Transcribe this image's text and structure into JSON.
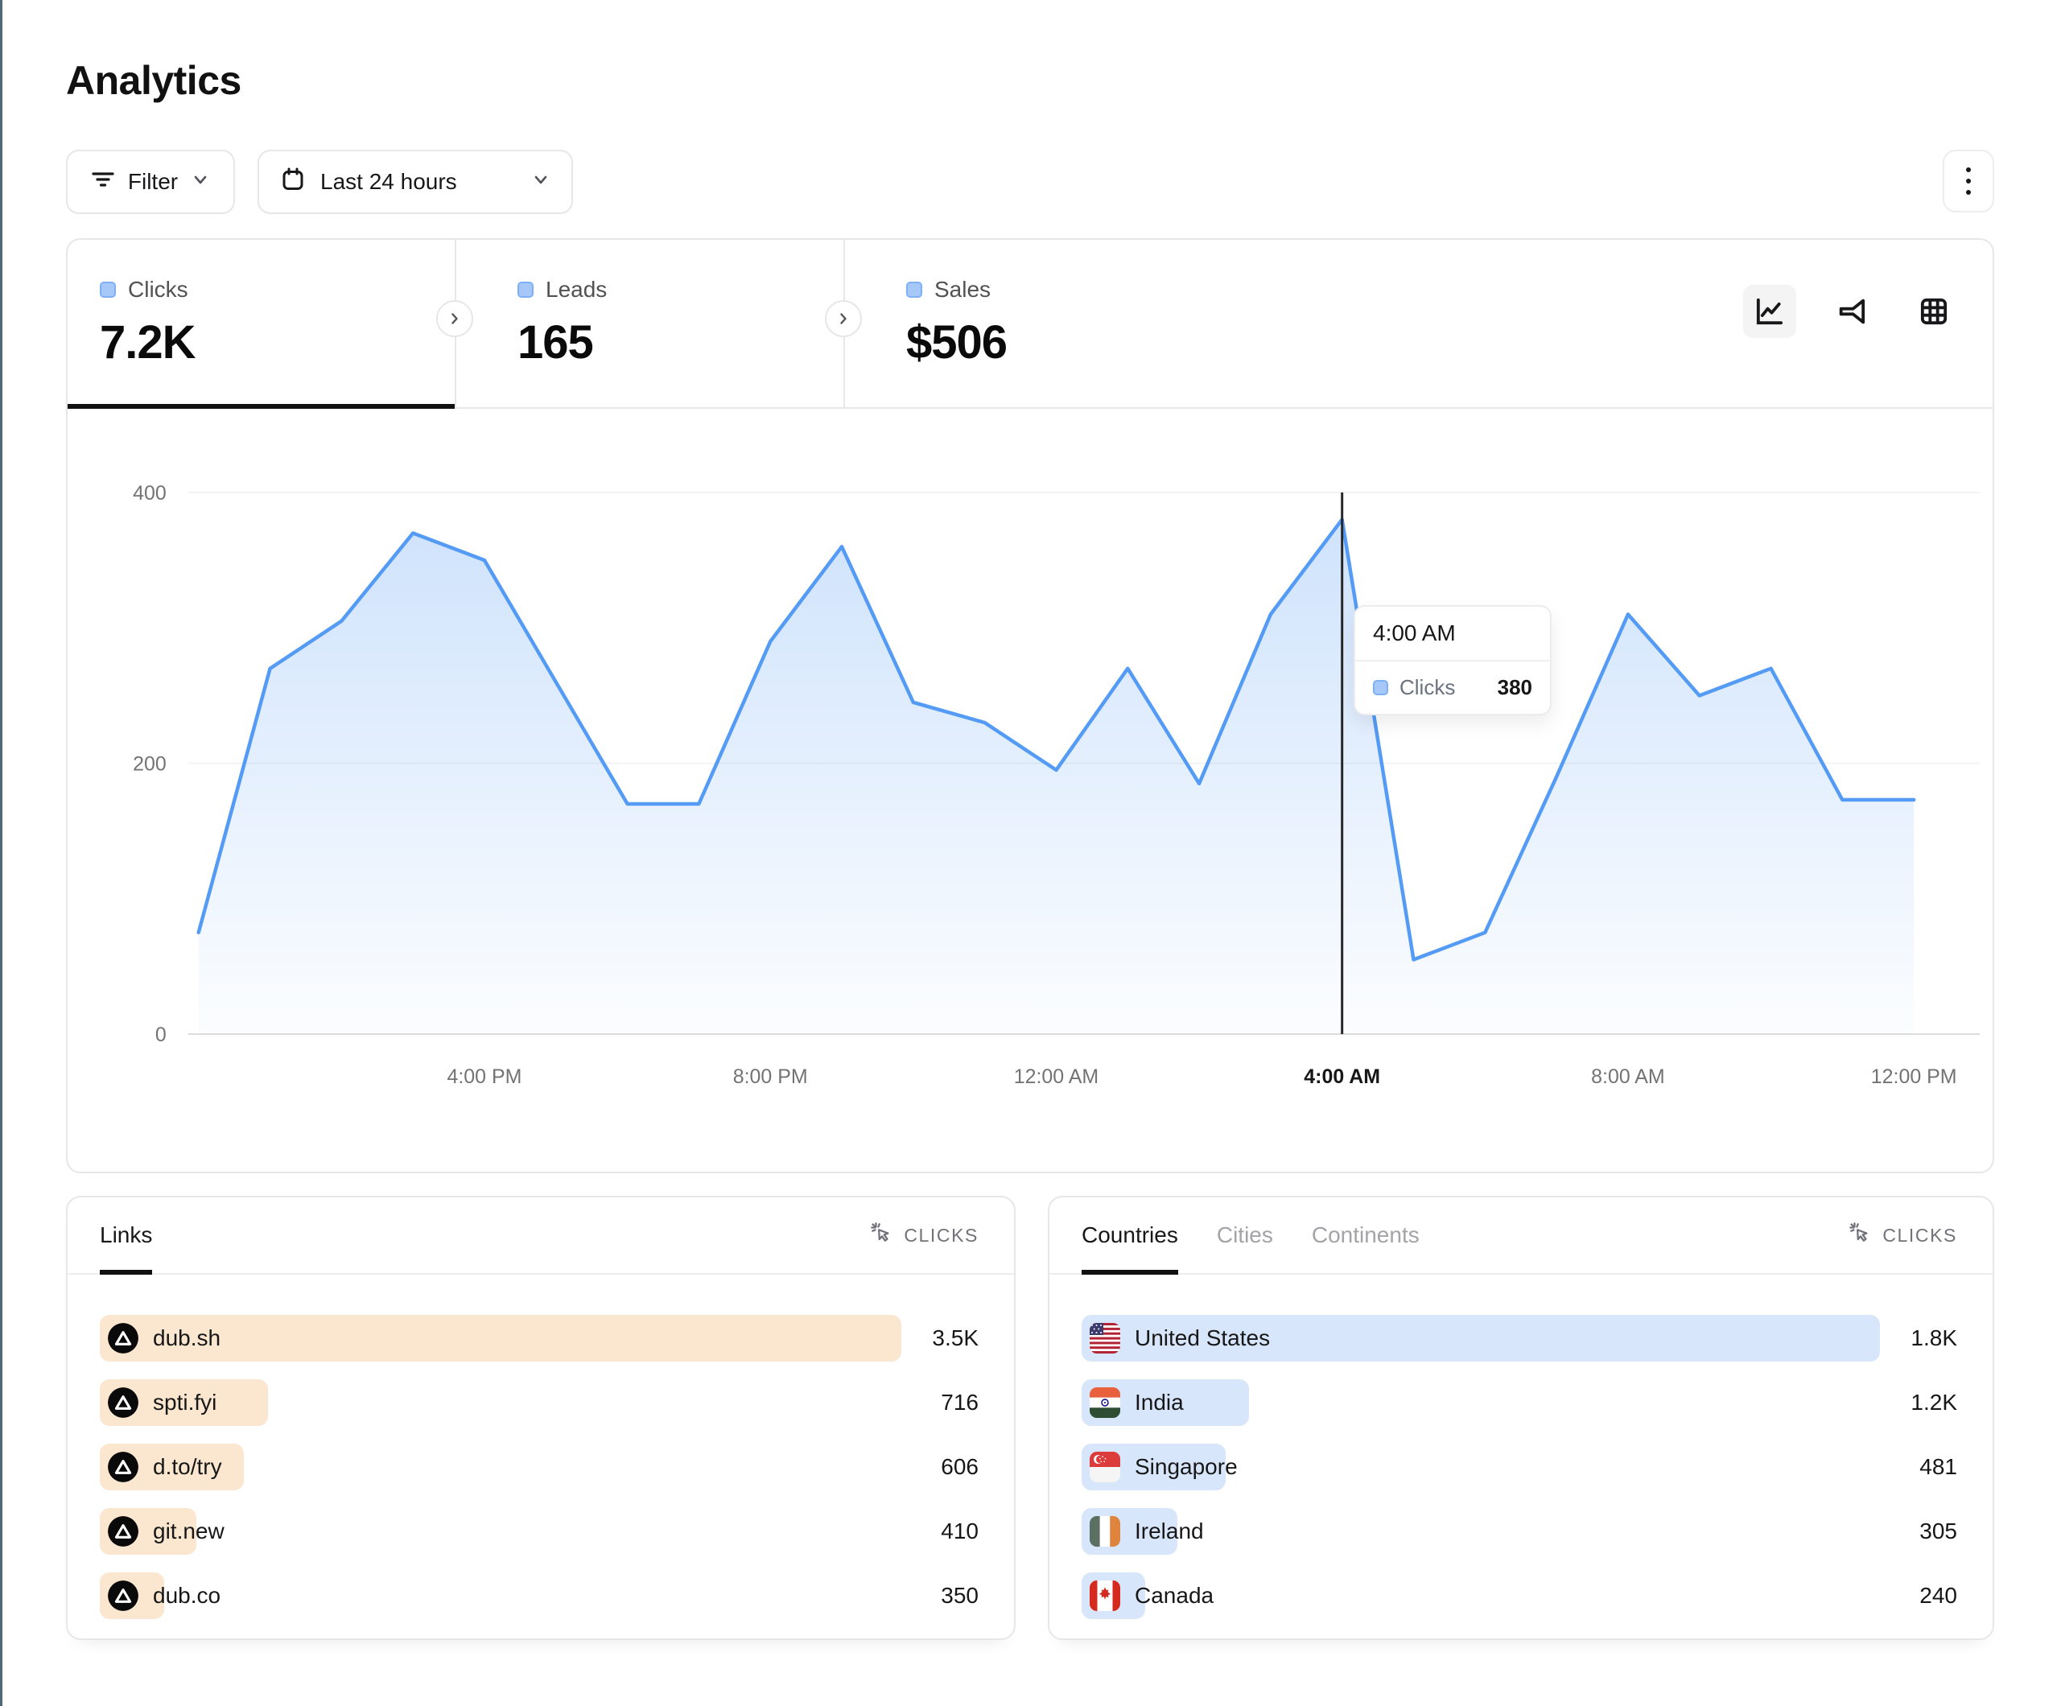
{
  "page": {
    "title": "Analytics"
  },
  "toolbar": {
    "filter_label": "Filter",
    "date_range_label": "Last 24 hours"
  },
  "stats": [
    {
      "label": "Clicks",
      "value": "7.2K"
    },
    {
      "label": "Leads",
      "value": "165"
    },
    {
      "label": "Sales",
      "value": "$506"
    }
  ],
  "chart_data": {
    "type": "area",
    "series": [
      {
        "name": "Clicks",
        "color": "#549bf5",
        "values": [
          75,
          270,
          305,
          370,
          350,
          260,
          170,
          170,
          290,
          360,
          245,
          230,
          195,
          270,
          185,
          310,
          380,
          55,
          75,
          190,
          310,
          250,
          270,
          173,
          173
        ]
      }
    ],
    "x": [
      "12 PM",
      "1 PM",
      "2 PM",
      "3 PM",
      "4 PM",
      "5 PM",
      "6 PM",
      "7 PM",
      "8 PM",
      "9 PM",
      "10 PM",
      "11 PM",
      "12 AM",
      "1 AM",
      "2 AM",
      "3 AM",
      "4 AM",
      "5 AM",
      "6 AM",
      "7 AM",
      "8 AM",
      "9 AM",
      "10 AM",
      "11 AM",
      "12 PM"
    ],
    "tick_indices": [
      4,
      8,
      12,
      16,
      20,
      24
    ],
    "tick_labels": [
      "4:00 PM",
      "8:00 PM",
      "12:00 AM",
      "4:00 AM",
      "8:00 AM",
      "12:00 PM"
    ],
    "yticks": [
      0,
      200,
      400
    ],
    "ylim": [
      0,
      400
    ],
    "grid": true,
    "legend_position": "none",
    "hover": {
      "index": 16,
      "label": "4:00 AM",
      "series_label": "Clicks",
      "value": "380"
    }
  },
  "links_panel": {
    "tab_label": "Links",
    "metric_label": "CLICKS",
    "rows": [
      {
        "label": "dub.sh",
        "value": "3.5K",
        "pct": 100
      },
      {
        "label": "spti.fyi",
        "value": "716",
        "pct": 21
      },
      {
        "label": "d.to/try",
        "value": "606",
        "pct": 18
      },
      {
        "label": "git.new",
        "value": "410",
        "pct": 12
      },
      {
        "label": "dub.co",
        "value": "350",
        "pct": 8
      }
    ]
  },
  "countries_panel": {
    "tabs": [
      {
        "label": "Countries",
        "active": true
      },
      {
        "label": "Cities",
        "active": false
      },
      {
        "label": "Continents",
        "active": false
      }
    ],
    "metric_label": "CLICKS",
    "rows": [
      {
        "label": "United States",
        "value": "1.8K",
        "pct": 100,
        "flag": "us"
      },
      {
        "label": "India",
        "value": "1.2K",
        "pct": 21,
        "flag": "in"
      },
      {
        "label": "Singapore",
        "value": "481",
        "pct": 18,
        "flag": "sg"
      },
      {
        "label": "Ireland",
        "value": "305",
        "pct": 12,
        "flag": "ie"
      },
      {
        "label": "Canada",
        "value": "240",
        "pct": 8,
        "flag": "ca"
      }
    ]
  },
  "colors": {
    "accent_blue": "#549bf5",
    "legend_square_fill": "#a5c8f9",
    "legend_square_border": "#7fb0f6",
    "links_bar": "#fbe7d0",
    "countries_bar": "#d8e6fb",
    "hover_line": "#27272a",
    "left_edge": "#4c6b72",
    "card_border": "#e7e7e9"
  }
}
